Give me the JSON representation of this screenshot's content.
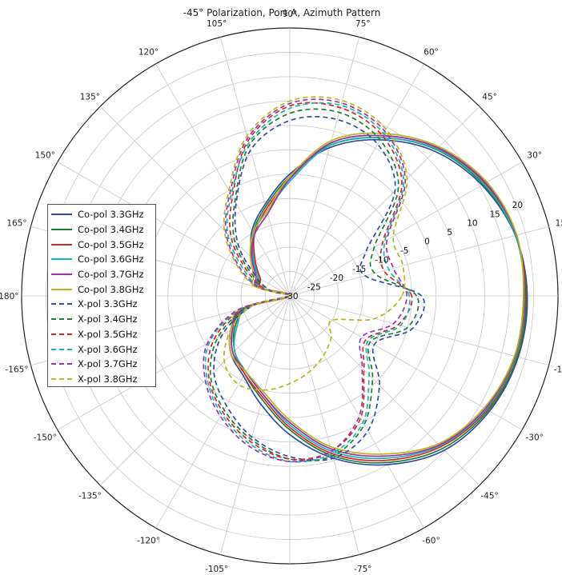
{
  "chart_data": {
    "type": "polar-line",
    "title": "-45° Polarization, Port A, Azimuth Pattern",
    "angular_ticks": [
      "0°",
      "15°",
      "30°",
      "45°",
      "60°",
      "75°",
      "90°",
      "105°",
      "120°",
      "135°",
      "150°",
      "165°",
      "-180°",
      "-165°",
      "-150°",
      "-135°",
      "-120°",
      "-105°",
      "-90°",
      "-75°",
      "-60°",
      "-45°",
      "-30°",
      "-15°"
    ],
    "angular_tick_values": [
      0,
      15,
      30,
      45,
      60,
      75,
      90,
      105,
      120,
      135,
      150,
      165,
      180,
      -165,
      -150,
      -135,
      -120,
      -105,
      -90,
      -75,
      -60,
      -45,
      -30,
      -15
    ],
    "radial_ticks": [
      "-30",
      "-25",
      "-20",
      "-15",
      "-10",
      "-5",
      "0",
      "5",
      "10",
      "15",
      "20"
    ],
    "radial_tick_values": [
      -30,
      -25,
      -20,
      -15,
      -10,
      -5,
      0,
      5,
      10,
      15,
      20
    ],
    "rlim": [
      -30,
      25
    ],
    "angle_unit": "deg",
    "radial_unit": "dB",
    "grid": true,
    "legend_position": "left",
    "angles": [
      0,
      15,
      30,
      45,
      60,
      75,
      90,
      105,
      120,
      135,
      150,
      165,
      180,
      -165,
      -150,
      -135,
      -120,
      -105,
      -90,
      -75,
      -60,
      -45,
      -30,
      -15
    ],
    "series": [
      {
        "name": "Co-pol 3.3GHz",
        "color": "#2f4ea3",
        "dash": "solid",
        "values": [
          18.7,
          17.9,
          15.5,
          12.0,
          7.0,
          1.5,
          -5.0,
          -10.5,
          -14.5,
          -19.0,
          -22.5,
          -23.0,
          -30.0,
          -20.0,
          -16.0,
          -13.0,
          -11.0,
          -7.0,
          -1.5,
          4.5,
          10.0,
          14.8,
          17.3,
          18.5
        ]
      },
      {
        "name": "Co-pol 3.4GHz",
        "color": "#1e7d32",
        "dash": "solid",
        "values": [
          18.5,
          17.9,
          15.8,
          12.5,
          7.5,
          2.0,
          -5.5,
          -11.0,
          -15.0,
          -19.5,
          -23.0,
          -23.5,
          -30.0,
          -21.0,
          -17.0,
          -14.0,
          -11.5,
          -8.0,
          -2.5,
          4.0,
          9.5,
          14.3,
          17.0,
          18.3
        ]
      },
      {
        "name": "Co-pol 3.5GHz",
        "color": "#d62728",
        "dash": "solid",
        "values": [
          18.3,
          18.0,
          16.2,
          12.9,
          8.0,
          2.5,
          -6.0,
          -11.5,
          -15.5,
          -20.0,
          -23.0,
          -24.0,
          -30.0,
          -20.5,
          -16.5,
          -13.5,
          -11.5,
          -8.5,
          -3.0,
          3.5,
          9.0,
          13.8,
          16.7,
          18.0
        ]
      },
      {
        "name": "Co-pol 3.6GHz",
        "color": "#17b5b5",
        "dash": "solid",
        "values": [
          18.1,
          17.9,
          16.0,
          12.6,
          7.5,
          2.0,
          -6.5,
          -12.0,
          -15.0,
          -19.5,
          -22.5,
          -23.5,
          -30.0,
          -21.0,
          -17.5,
          -14.0,
          -12.0,
          -9.0,
          -3.5,
          3.0,
          8.5,
          13.5,
          16.5,
          17.9
        ]
      },
      {
        "name": "Co-pol 3.7GHz",
        "color": "#9b34a8",
        "dash": "solid",
        "values": [
          18.0,
          18.1,
          16.4,
          13.0,
          8.0,
          2.5,
          -6.0,
          -12.5,
          -15.5,
          -19.0,
          -22.0,
          -23.0,
          -30.0,
          -20.0,
          -16.5,
          -13.5,
          -12.0,
          -9.0,
          -4.0,
          2.5,
          8.0,
          13.3,
          16.3,
          17.8
        ]
      },
      {
        "name": "Co-pol 3.8GHz",
        "color": "#b8b521",
        "dash": "solid",
        "values": [
          17.9,
          18.2,
          16.7,
          13.3,
          8.5,
          3.0,
          -5.5,
          -12.0,
          -15.0,
          -18.5,
          -21.5,
          -22.5,
          -30.0,
          -19.5,
          -16.0,
          -13.0,
          -12.0,
          -9.5,
          -4.5,
          2.0,
          7.5,
          13.0,
          16.0,
          17.7
        ]
      },
      {
        "name": "X-pol 3.3GHz",
        "color": "#2f4ea3",
        "dash": "dashed",
        "values": [
          -3.0,
          -14.0,
          -12.0,
          0.5,
          6.0,
          7.5,
          6.0,
          1.0,
          -8.0,
          -15.0,
          -22.0,
          -26.0,
          -30.0,
          -22.0,
          -14.0,
          -8.0,
          -4.0,
          0.0,
          3.0,
          4.5,
          2.0,
          -4.0,
          -10.0,
          -4.0
        ]
      },
      {
        "name": "X-pol 3.4GHz",
        "color": "#1e7d32",
        "dash": "dashed",
        "values": [
          -4.0,
          -12.0,
          -10.0,
          1.5,
          7.0,
          9.0,
          7.5,
          2.0,
          -7.5,
          -14.0,
          -21.0,
          -26.0,
          -30.0,
          -21.0,
          -13.0,
          -7.0,
          -3.0,
          0.5,
          3.5,
          4.0,
          0.5,
          -6.0,
          -11.0,
          -5.0
        ]
      },
      {
        "name": "X-pol 3.5GHz",
        "color": "#d62728",
        "dash": "dashed",
        "values": [
          -5.0,
          -10.0,
          -8.0,
          2.5,
          8.0,
          10.0,
          9.0,
          3.0,
          -6.5,
          -13.0,
          -20.0,
          -25.0,
          -30.0,
          -20.0,
          -12.0,
          -6.5,
          -2.5,
          1.0,
          3.5,
          3.0,
          -1.0,
          -8.5,
          -12.0,
          -7.0
        ]
      },
      {
        "name": "X-pol 3.6GHz",
        "color": "#17b5b5",
        "dash": "dashed",
        "values": [
          -5.5,
          -9.0,
          -7.5,
          3.0,
          8.5,
          10.5,
          8.5,
          2.5,
          -6.0,
          -12.0,
          -19.0,
          -24.0,
          -30.0,
          -19.5,
          -11.0,
          -6.0,
          -2.0,
          1.5,
          4.0,
          3.5,
          0.0,
          -7.0,
          -11.5,
          -6.5
        ]
      },
      {
        "name": "X-pol 3.7GHz",
        "color": "#9b34a8",
        "dash": "dashed",
        "values": [
          -6.0,
          -8.0,
          -7.0,
          3.5,
          9.0,
          11.0,
          9.5,
          3.5,
          -5.5,
          -11.5,
          -18.0,
          -23.5,
          -30.0,
          -19.0,
          -10.5,
          -5.5,
          -1.5,
          2.0,
          4.0,
          3.0,
          -1.5,
          -9.0,
          -13.0,
          -8.0
        ]
      },
      {
        "name": "X-pol 3.8GHz",
        "color": "#b8b521",
        "dash": "dashed",
        "values": [
          -7.0,
          -6.0,
          -5.5,
          4.0,
          9.5,
          11.5,
          10.0,
          4.0,
          -5.0,
          -11.0,
          -17.5,
          -23.0,
          -30.0,
          -22.0,
          -16.0,
          -11.0,
          -9.0,
          -10.0,
          -12.0,
          -14.0,
          -16.0,
          -18.0,
          -20.0,
          -12.0
        ]
      }
    ]
  }
}
